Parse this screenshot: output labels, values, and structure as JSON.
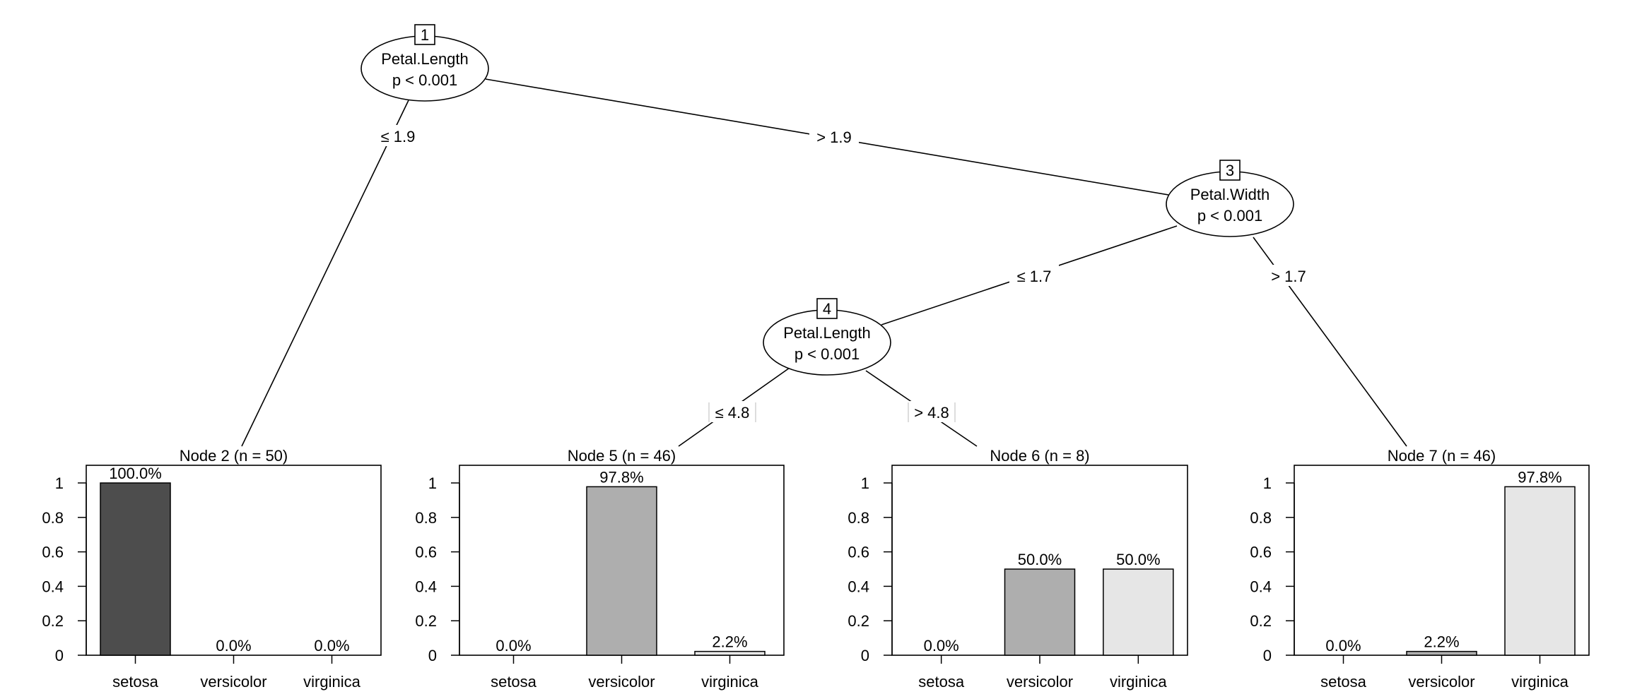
{
  "chart_data": {
    "type": "bar",
    "categories": [
      "setosa",
      "versicolor",
      "virginica"
    ],
    "colors": {
      "setosa": "#4d4d4d",
      "versicolor": "#aeaeae",
      "virginica": "#e6e6e6"
    },
    "y_ticks": [
      "0",
      "0.2",
      "0.4",
      "0.6",
      "0.8",
      "1"
    ],
    "ylim": [
      0,
      1
    ],
    "inner_nodes": [
      {
        "id": "1",
        "variable": "Petal.Length",
        "pvalue": "p < 0.001"
      },
      {
        "id": "3",
        "variable": "Petal.Width",
        "pvalue": "p < 0.001"
      },
      {
        "id": "4",
        "variable": "Petal.Length",
        "pvalue": "p < 0.001"
      }
    ],
    "edges": [
      {
        "from": "1",
        "to": "2",
        "label": "≤ 1.9"
      },
      {
        "from": "1",
        "to": "3",
        "label": "> 1.9"
      },
      {
        "from": "3",
        "to": "4",
        "label": "≤ 1.7"
      },
      {
        "from": "3",
        "to": "7",
        "label": "> 1.7"
      },
      {
        "from": "4",
        "to": "5",
        "label": "≤ 4.8"
      },
      {
        "from": "4",
        "to": "6",
        "label": "> 4.8"
      }
    ],
    "terminal_nodes": [
      {
        "id": "2",
        "title": "Node 2 (n = 50)",
        "values": [
          1.0,
          0.0,
          0.0
        ],
        "labels": [
          "100.0%",
          "0.0%",
          "0.0%"
        ]
      },
      {
        "id": "5",
        "title": "Node 5 (n = 46)",
        "values": [
          0.0,
          0.978,
          0.022
        ],
        "labels": [
          "0.0%",
          "97.8%",
          "2.2%"
        ]
      },
      {
        "id": "6",
        "title": "Node 6 (n = 8)",
        "values": [
          0.0,
          0.5,
          0.5
        ],
        "labels": [
          "0.0%",
          "50.0%",
          "50.0%"
        ]
      },
      {
        "id": "7",
        "title": "Node 7 (n = 46)",
        "values": [
          0.0,
          0.022,
          0.978
        ],
        "labels": [
          "0.0%",
          "2.2%",
          "97.8%"
        ]
      }
    ]
  }
}
